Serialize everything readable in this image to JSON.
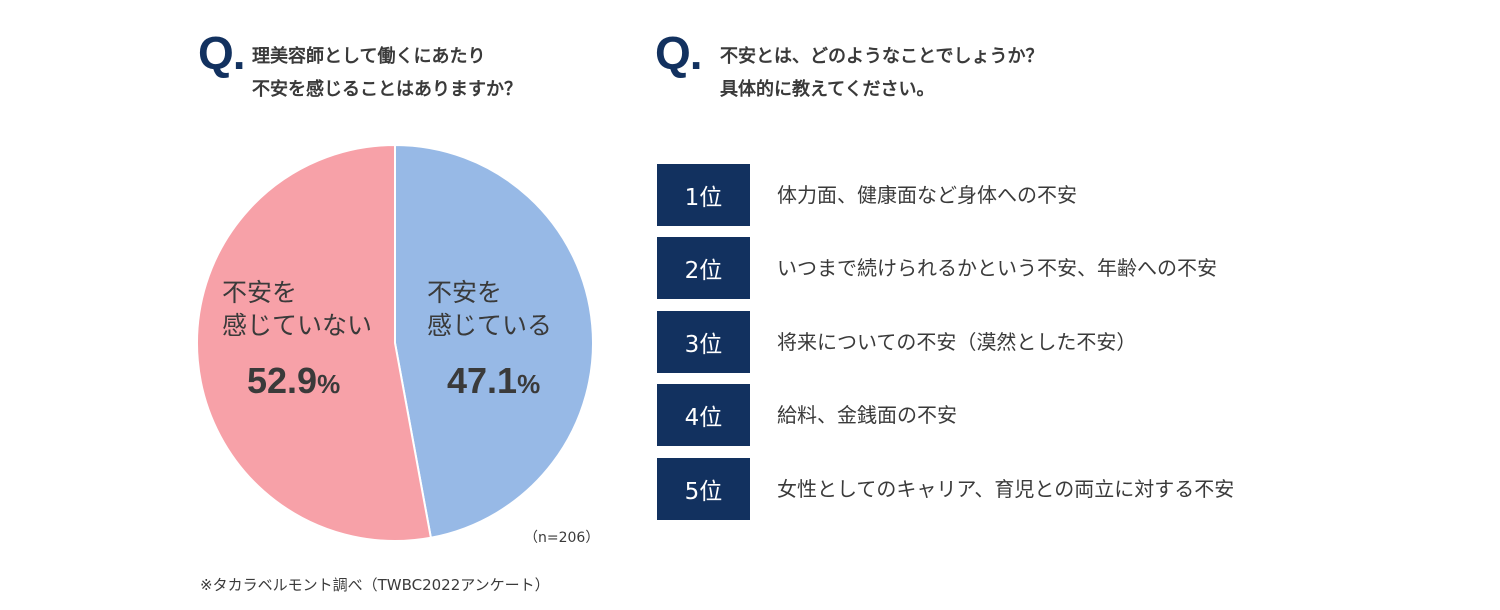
{
  "q1": {
    "mark": "Q.",
    "text": "理美容師として働くにあたり\n不安を感じることはありますか？"
  },
  "q2": {
    "mark": "Q.",
    "text": "不安とは、どのようなことでしょうか？\n具体的に教えてください。"
  },
  "chart_data": {
    "type": "pie",
    "slices": [
      {
        "label": "不安を\n感じている",
        "value": 47.1,
        "pct_text": "47.1",
        "unit": "%",
        "color": "#97b9e6"
      },
      {
        "label": "不安を\n感じていない",
        "value": 52.9,
        "pct_text": "52.9",
        "unit": "%",
        "color": "#f7a1a8"
      }
    ],
    "start": "12 o'clock, clockwise",
    "sample_size": "（n=206）"
  },
  "source": "※タカラベルモント調べ（TWBC2022アンケート）",
  "ranking": [
    {
      "rank": "1位",
      "text": "体力面、健康面など身体への不安"
    },
    {
      "rank": "2位",
      "text": "いつまで続けられるかという不安、年齢への不安"
    },
    {
      "rank": "3位",
      "text": "将来についての不安（漠然とした不安）"
    },
    {
      "rank": "4位",
      "text": "給料、金銭面の不安"
    },
    {
      "rank": "5位",
      "text": "女性としてのキャリア、育児との両立に対する不安"
    }
  ],
  "colors": {
    "navy": "#12315f",
    "blue": "#97b9e6",
    "pink": "#f7a1a8",
    "text": "#3a3a3a"
  }
}
